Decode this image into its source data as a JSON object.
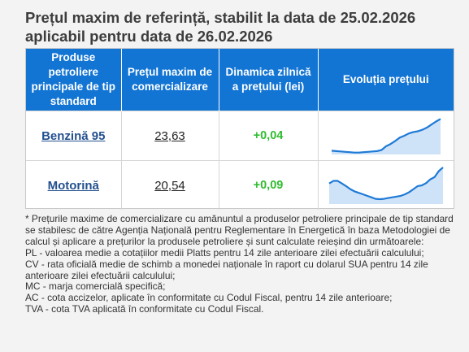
{
  "title": {
    "line1": "Prețul maxim de referință, stabilit la data de 25.02.2026",
    "line2": "aplicabil pentru data de 26.02.2026"
  },
  "table": {
    "headers": [
      "Produse petroliere principale de tip standard",
      "Prețul maxim de comercializare",
      "Dinamica zilnică a prețului (lei)",
      "Evoluția prețului"
    ],
    "rows": [
      {
        "product": "Benzină 95",
        "price": "23,63",
        "change": "+0,04",
        "trend": [
          0.1,
          0.09,
          0.08,
          0.07,
          0.06,
          0.05,
          0.05,
          0.06,
          0.07,
          0.08,
          0.09,
          0.12,
          0.22,
          0.28,
          0.36,
          0.45,
          0.5,
          0.56,
          0.6,
          0.62,
          0.66,
          0.72,
          0.8,
          0.88,
          0.95
        ]
      },
      {
        "product": "Motorină",
        "price": "20,54",
        "change": "+0,09",
        "trend": [
          0.55,
          0.62,
          0.62,
          0.55,
          0.48,
          0.4,
          0.34,
          0.3,
          0.26,
          0.22,
          0.18,
          0.14,
          0.13,
          0.14,
          0.16,
          0.18,
          0.2,
          0.22,
          0.26,
          0.32,
          0.4,
          0.48,
          0.5,
          0.56,
          0.66,
          0.72,
          0.88,
          0.98
        ]
      }
    ]
  },
  "notes": [
    "* Prețurile maxime de comercializare cu amănuntul a produselor petroliere principale de tip standard se stabilesc de către Agenția Națională pentru Reglementare în Energetică în baza Metodologiei de calcul și aplicare a prețurilor la produsele petroliere și sunt calculate reieșind din următoarele:",
    "PL - valoarea medie a cotațiilor medii Platts pentru 14 zile anterioare zilei efectuării calculului;",
    "CV - rata oficială medie de schimb a monedei naționale în raport cu dolarul SUA pentru 14 zile anterioare zilei efectuării calculului;",
    "MC - marja comercială specifică;",
    "AC - cota accizelor, aplicate în conformitate cu Codul Fiscal, pentru 14 zile anterioare;",
    "TVA - cota TVA aplicată în conformitate cu Codul Fiscal."
  ],
  "colors": {
    "header_bg": "#1274d3",
    "header_text": "#ffffff",
    "link": "#24508f",
    "positive": "#2ebd2e",
    "spark_line": "#1f7ad6",
    "spark_fill": "#cfe3f8"
  }
}
